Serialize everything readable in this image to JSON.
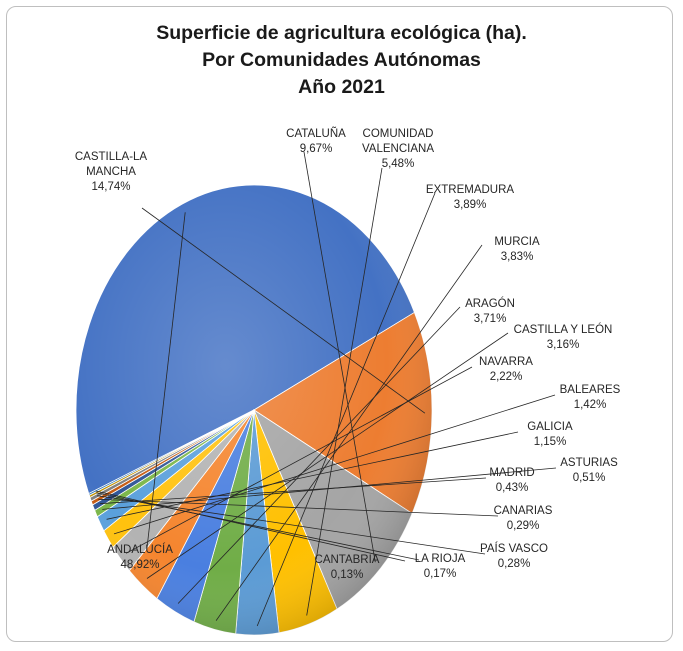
{
  "title_lines": [
    "Superficie de agricultura ecológica (ha).",
    "Por Comunidades Autónomas",
    "Año 2021"
  ],
  "chart_data": {
    "type": "pie",
    "title": "Superficie de agricultura ecológica (ha). Por Comunidades Autónomas Año 2021",
    "unit": "%",
    "legend": "none",
    "slices": [
      {
        "name": "ANDALUCÍA",
        "label_lines": [
          "ANDALUCÍA"
        ],
        "value": 48.92,
        "value_label": "48,92%",
        "color": "#4472c4"
      },
      {
        "name": "CASTILLA-LA MANCHA",
        "label_lines": [
          "CASTILLA-LA",
          "MANCHA"
        ],
        "value": 14.74,
        "value_label": "14,74%",
        "color": "#ed7d31"
      },
      {
        "name": "CATALUÑA",
        "label_lines": [
          "CATALUÑA"
        ],
        "value": 9.67,
        "value_label": "9,67%",
        "color": "#a5a5a5"
      },
      {
        "name": "COMUNIDAD VALENCIANA",
        "label_lines": [
          "COMUNIDAD",
          "VALENCIANA"
        ],
        "value": 5.48,
        "value_label": "5,48%",
        "color": "#ffc000"
      },
      {
        "name": "EXTREMADURA",
        "label_lines": [
          "EXTREMADURA"
        ],
        "value": 3.89,
        "value_label": "3,89%",
        "color": "#5b9bd5"
      },
      {
        "name": "MURCIA",
        "label_lines": [
          "MURCIA"
        ],
        "value": 3.83,
        "value_label": "3,83%",
        "color": "#70ad47"
      },
      {
        "name": "ARAGÓN",
        "label_lines": [
          "ARAGÓN"
        ],
        "value": 3.71,
        "value_label": "3,71%",
        "color": "#4a7fe0"
      },
      {
        "name": "CASTILLA Y LEÓN",
        "label_lines": [
          "CASTILLA Y LEÓN"
        ],
        "value": 3.16,
        "value_label": "3,16%",
        "color": "#f5852e"
      },
      {
        "name": "NAVARRA",
        "label_lines": [
          "NAVARRA"
        ],
        "value": 2.22,
        "value_label": "2,22%",
        "color": "#b3b3b3"
      },
      {
        "name": "BALEARES",
        "label_lines": [
          "BALEARES"
        ],
        "value": 1.42,
        "value_label": "1,42%",
        "color": "#ffc20e"
      },
      {
        "name": "GALICIA",
        "label_lines": [
          "GALICIA"
        ],
        "value": 1.15,
        "value_label": "1,15%",
        "color": "#5aa0dc"
      },
      {
        "name": "ASTURIAS",
        "label_lines": [
          "ASTURIAS"
        ],
        "value": 0.51,
        "value_label": "0,51%",
        "color": "#7ab648"
      },
      {
        "name": "MADRID",
        "label_lines": [
          "MADRID"
        ],
        "value": 0.43,
        "value_label": "0,43%",
        "color": "#2f5597"
      },
      {
        "name": "CANARIAS",
        "label_lines": [
          "CANARIAS"
        ],
        "value": 0.29,
        "value_label": "0,29%",
        "color": "#c55a11"
      },
      {
        "name": "PAÍS VASCO",
        "label_lines": [
          "PAÍS VASCO"
        ],
        "value": 0.28,
        "value_label": "0,28%",
        "color": "#7f7f7f"
      },
      {
        "name": "LA RIOJA",
        "label_lines": [
          "LA RIOJA"
        ],
        "value": 0.17,
        "value_label": "0,17%",
        "color": "#bf9000"
      },
      {
        "name": "CANTABRIA",
        "label_lines": [
          "CANTABRIA"
        ],
        "value": 0.13,
        "value_label": "0,13%",
        "color": "#2e75b6"
      }
    ]
  }
}
